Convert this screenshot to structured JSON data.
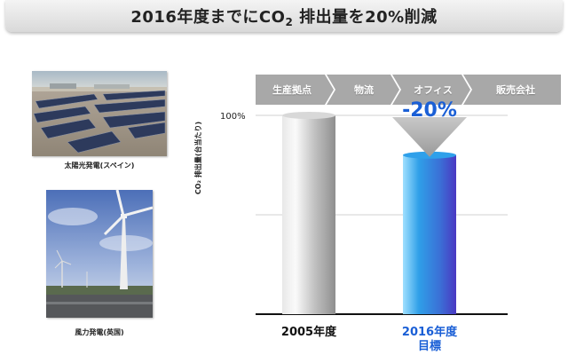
{
  "title": {
    "prefix": "2016年度までにCO",
    "subscript": "2",
    "suffix": " 排出量を20%削減"
  },
  "photos": [
    {
      "caption": "太陽光発電(スペイン)",
      "subject": "solar-panels"
    },
    {
      "caption": "風力発電(英国)",
      "subject": "wind-turbine"
    }
  ],
  "value_chain": [
    "生産拠点",
    "物流",
    "オフィス",
    "販売会社"
  ],
  "colors": {
    "bar_2005": "#bdbdbd",
    "bar_2016": "#3a8fe0",
    "target_label": "#1a5fd6",
    "arrow": "#a9a9a9",
    "chevron": "#a8a8a8"
  },
  "chart_data": {
    "type": "bar",
    "categories": [
      "2005年度",
      "2016年度\n目標"
    ],
    "values": [
      100,
      80
    ],
    "ylabel": "CO₂ 排出量(台当たり)",
    "ytick_labels": [
      "100%"
    ],
    "ylim": [
      0,
      100
    ],
    "annotation": "-20%",
    "grid": true
  }
}
